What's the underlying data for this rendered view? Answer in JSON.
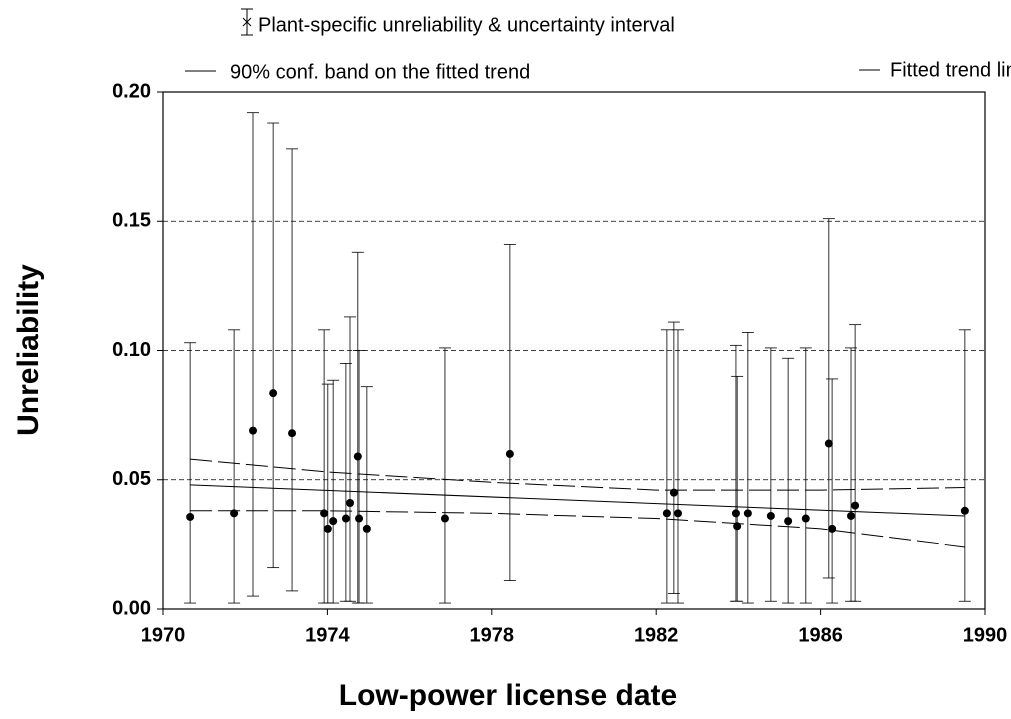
{
  "chart_data": {
    "type": "errorbar",
    "x_label": "Low-power license date",
    "y_label": "Unreliability",
    "xlim": [
      1970,
      1990
    ],
    "xticks": [
      1970,
      1974,
      1978,
      1982,
      1986,
      1990
    ],
    "ylim": [
      0,
      0.2
    ],
    "yticks": [
      {
        "value": 0,
        "label": "0.00"
      },
      {
        "value": 0.05,
        "label": "0.05"
      },
      {
        "value": 0.1,
        "label": "0.10"
      },
      {
        "value": 0.15,
        "label": "0.15"
      },
      {
        "value": 0.2,
        "label": "0.20"
      }
    ],
    "grid": true,
    "series": [
      {
        "name": "Plant-specific unreliability & uncertainty interval",
        "color": "#000000",
        "x": [
          1970.66,
          1971.73,
          1972.19,
          1972.68,
          1973.14,
          1973.92,
          1974.01,
          1974.14,
          1974.45,
          1974.55,
          1974.74,
          1974.77,
          1974.96,
          1976.86,
          1978.44,
          1982.26,
          1982.43,
          1982.53,
          1983.94,
          1983.97,
          1984.23,
          1984.79,
          1985.21,
          1985.64,
          1986.2,
          1986.28,
          1986.74,
          1986.84,
          1989.51
        ],
        "values": [
          0.0356,
          0.037,
          0.069,
          0.0835,
          0.068,
          0.037,
          0.031,
          0.034,
          0.035,
          0.041,
          0.059,
          0.035,
          0.031,
          0.035,
          0.06,
          0.037,
          0.045,
          0.037,
          0.037,
          0.032,
          0.037,
          0.036,
          0.034,
          0.035,
          0.064,
          0.031,
          0.036,
          0.04,
          0.038
        ],
        "lower": [
          0.0023,
          0.0023,
          0.005,
          0.016,
          0.007,
          0.0023,
          0.0023,
          0.0023,
          0.003,
          0.003,
          0.0023,
          0.0023,
          0.0023,
          0.0023,
          0.011,
          0.0023,
          0.006,
          0.0023,
          0.003,
          0.003,
          0.0023,
          0.003,
          0.0023,
          0.0023,
          0.012,
          0.0023,
          0.003,
          0.003,
          0.003
        ],
        "upper": [
          0.103,
          0.108,
          0.192,
          0.188,
          0.178,
          0.108,
          0.087,
          0.0885,
          0.095,
          0.113,
          0.138,
          0.1,
          0.086,
          0.101,
          0.141,
          0.108,
          0.111,
          0.108,
          0.102,
          0.09,
          0.107,
          0.101,
          0.097,
          0.101,
          0.151,
          0.089,
          0.101,
          0.11,
          0.108
        ]
      },
      {
        "name": "90% conf. band on the fitted trend",
        "color": "#000000",
        "x": [
          1970.66,
          1974,
          1978,
          1982,
          1986,
          1989.51
        ],
        "upper": [
          0.058,
          0.053,
          0.049,
          0.046,
          0.046,
          0.047
        ],
        "lower": [
          0.038,
          0.038,
          0.037,
          0.035,
          0.031,
          0.024
        ]
      },
      {
        "name": "Fitted trend line",
        "color": "#000000",
        "x": [
          1970.66,
          1989.51
        ],
        "values": [
          0.048,
          0.036
        ]
      }
    ]
  }
}
